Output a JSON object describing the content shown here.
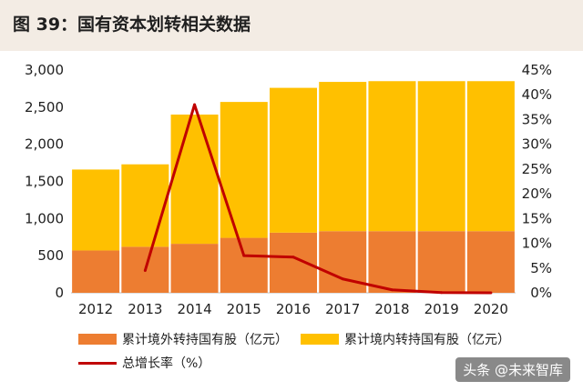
{
  "title": "图 39：国有资本划转相关数据",
  "watermark": "头条 @未来智库",
  "colors": {
    "outer": "#ed7d31",
    "inner": "#ffc000",
    "line": "#c00000"
  },
  "chart_data": {
    "type": "bar",
    "stacked": true,
    "categories": [
      "2012",
      "2013",
      "2014",
      "2015",
      "2016",
      "2017",
      "2018",
      "2019",
      "2020"
    ],
    "series": [
      {
        "name": "累计境外转持国有股（亿元）",
        "type": "bar",
        "axis": "left",
        "values": [
          570,
          620,
          660,
          740,
          810,
          830,
          830,
          830,
          830
        ]
      },
      {
        "name": "累计境内转持国有股（亿元）",
        "type": "bar",
        "axis": "left",
        "values": [
          1090,
          1110,
          1740,
          1830,
          1950,
          2010,
          2020,
          2020,
          2020
        ]
      },
      {
        "name": "总增长率（%）",
        "type": "line",
        "axis": "right",
        "values": [
          null,
          4.5,
          38,
          7.5,
          7.2,
          2.8,
          0.6,
          0.05,
          0.0
        ]
      }
    ],
    "y_left": {
      "ylim": [
        0,
        3000
      ],
      "ticks": [
        "0",
        "500",
        "1,000",
        "1,500",
        "2,000",
        "2,500",
        "3,000"
      ]
    },
    "y_right": {
      "ylim": [
        0,
        45
      ],
      "ticks": [
        "0%",
        "5%",
        "10%",
        "15%",
        "20%",
        "25%",
        "30%",
        "35%",
        "40%",
        "45%"
      ]
    },
    "legend_position": "bottom"
  }
}
